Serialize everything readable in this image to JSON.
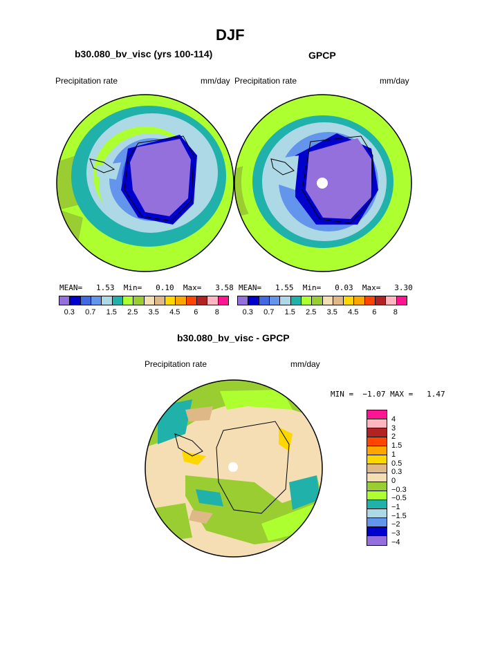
{
  "main_title": "DJF",
  "panels": [
    {
      "subtitle": "b30.080_bv_visc (yrs 100-114)",
      "left_label": "Precipitation rate",
      "right_label": "mm/day",
      "stats": {
        "mean_label": "MEAN=",
        "mean": "1.53",
        "min_label": "Min=",
        "min": "0.10",
        "max_label": "Max=",
        "max": "3.58"
      }
    },
    {
      "subtitle": "GPCP",
      "left_label": "Precipitation rate",
      "right_label": "mm/day",
      "stats": {
        "mean_label": "MEAN=",
        "mean": "1.55",
        "min_label": "Min=",
        "min": "0.03",
        "max_label": "Max=",
        "max": "3.30"
      }
    }
  ],
  "colorbar": {
    "colors": [
      "#9370db",
      "#0000cd",
      "#4169e1",
      "#6495ed",
      "#add8e6",
      "#20b2aa",
      "#adff2f",
      "#9acd32",
      "#f5deb3",
      "#deb887",
      "#ffd700",
      "#ffa500",
      "#ff4500",
      "#b22222",
      "#ffb6c1",
      "#ff1493"
    ],
    "ticks": [
      "0.3",
      "0.7",
      "1.5",
      "2.5",
      "3.5",
      "4.5",
      "6",
      "8"
    ]
  },
  "diff": {
    "subtitle": "b30.080_bv_visc - GPCP",
    "left_label": "Precipitation rate",
    "right_label": "mm/day",
    "minmax": "MIN =  −1.07 MAX =   1.47",
    "colors": [
      "#ff1493",
      "#ffb6c1",
      "#b22222",
      "#ff4500",
      "#ffa500",
      "#ffd700",
      "#deb887",
      "#f5deb3",
      "#9acd32",
      "#adff2f",
      "#20b2aa",
      "#add8e6",
      "#6495ed",
      "#0000cd",
      "#9370db"
    ],
    "ticks": [
      "4",
      "3",
      "2",
      "1.5",
      "1",
      "0.5",
      "0.3",
      "0",
      "−0.3",
      "−0.5",
      "−1",
      "−1.5",
      "−2",
      "−3",
      "−4"
    ]
  }
}
